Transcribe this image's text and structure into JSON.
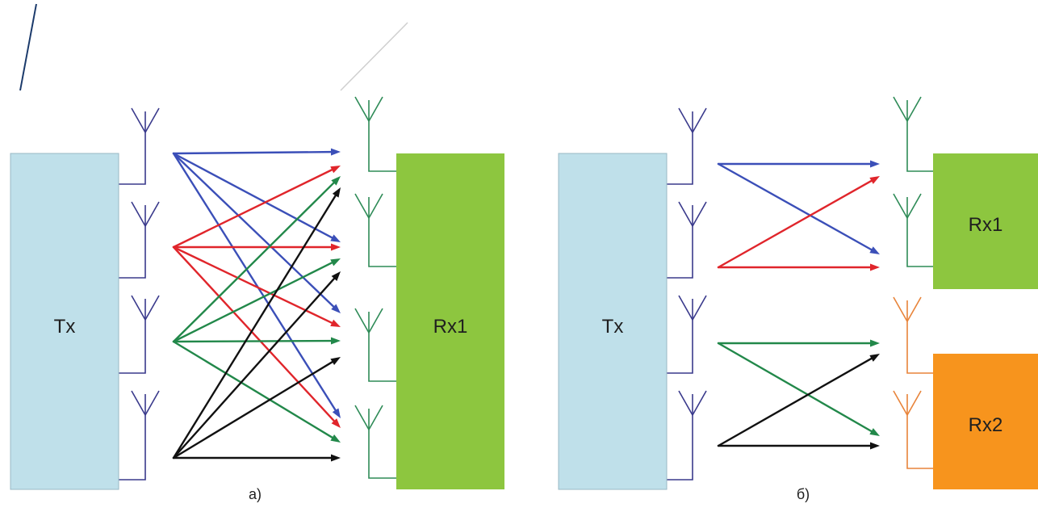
{
  "labels": {
    "tx_a": "Tx",
    "rx_a": "Rx1",
    "tx_b": "Tx",
    "rx1_b": "Rx1",
    "rx2_b": "Rx2",
    "caption_a": "а)",
    "caption_b": "б)"
  },
  "colors": {
    "tx_fill": "#bfe0ea",
    "tx_stroke": "#9ab8c4",
    "rx1_fill": "#8dc63f",
    "rx2_fill": "#f7941d",
    "tx_antenna": "#3a3a8c",
    "rx1_antenna": "#2e8b57",
    "rx2_antenna": "#e8843a",
    "path_blue": "#3b4fb8",
    "path_red": "#e0252b",
    "path_green": "#22884a",
    "path_black": "#111111"
  },
  "icons": [
    "tx-antenna-icon",
    "rx-antenna-icon"
  ],
  "diagram_a": {
    "tx_antenna_count": 4,
    "rx_antenna_count": 4,
    "links": "all-to-all",
    "tx_colors": [
      "blue",
      "red",
      "green",
      "black"
    ]
  },
  "diagram_b": {
    "tx_antenna_count": 4,
    "rx1_antenna_count": 2,
    "rx2_antenna_count": 2,
    "links": "cross-pairs",
    "tx_colors": [
      "blue",
      "red",
      "green",
      "black"
    ]
  }
}
